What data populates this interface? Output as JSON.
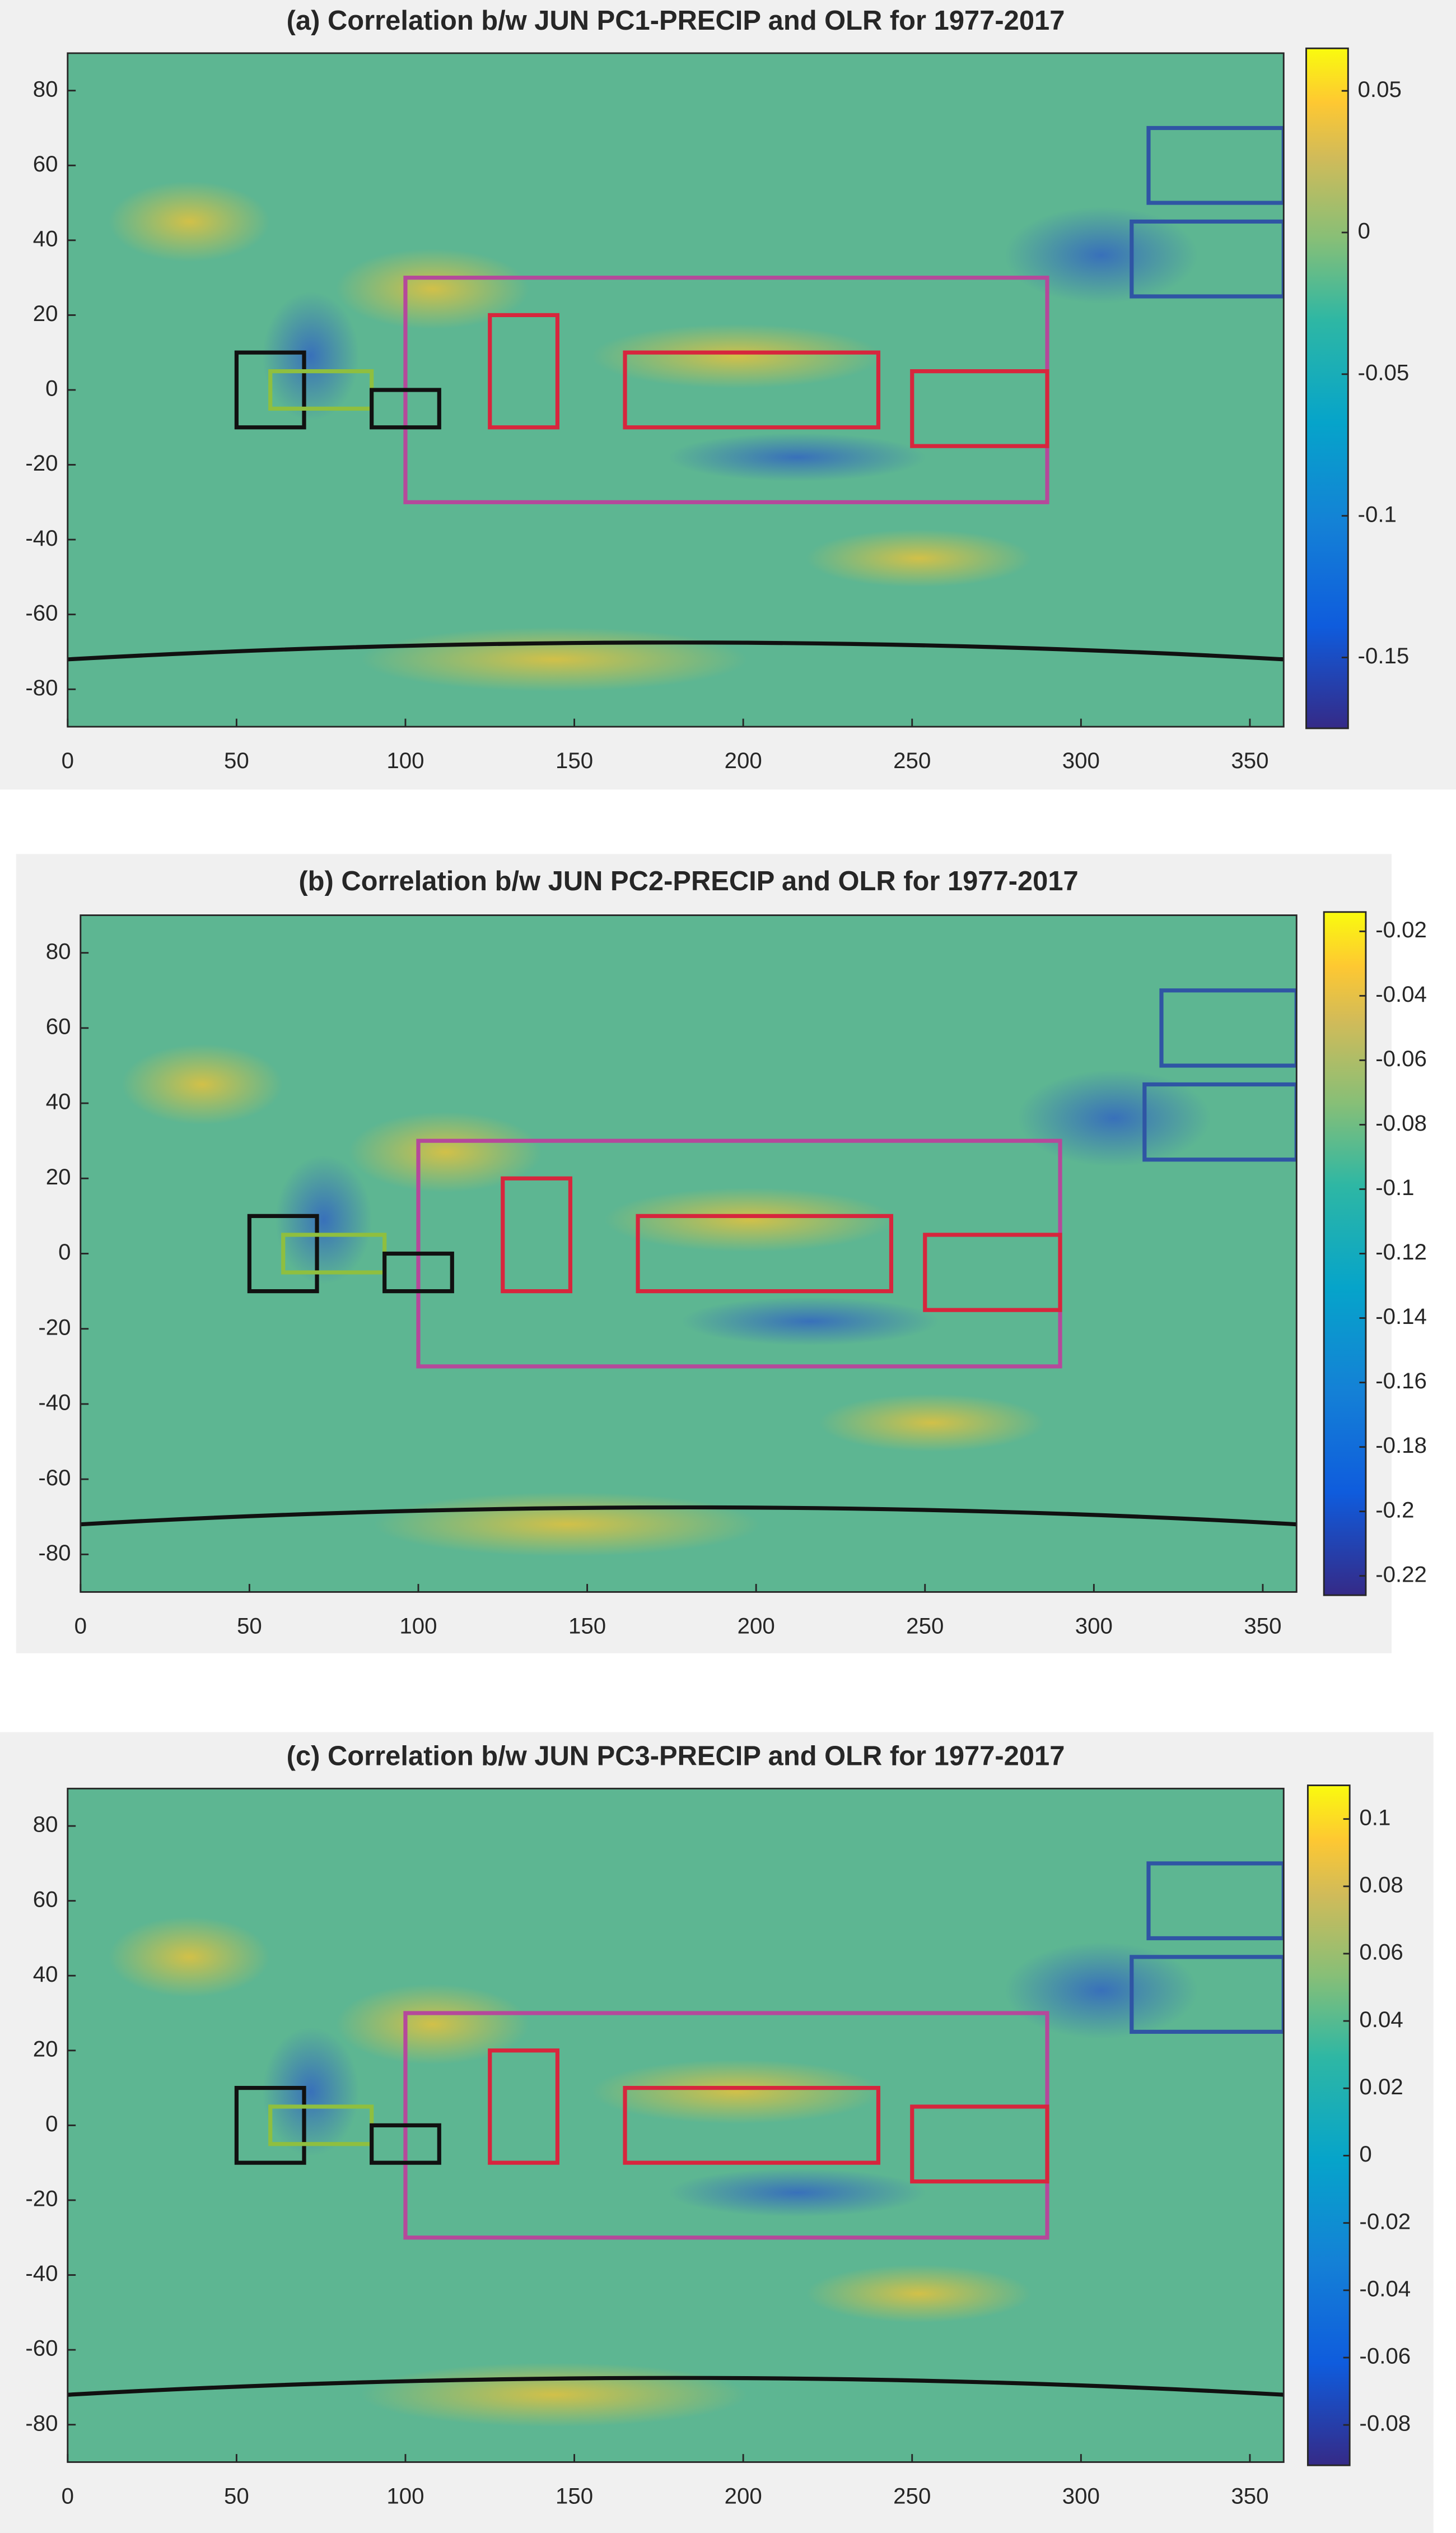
{
  "chart_data": [
    {
      "type": "map",
      "title": "(a) Correlation b/w JUN PC1-PRECIP and OLR for 1977-2017",
      "xlim": [
        0,
        360
      ],
      "xticks": [
        0,
        50,
        100,
        150,
        200,
        250,
        300,
        350
      ],
      "ylim": [
        -90,
        90
      ],
      "yticks": [
        -80,
        -60,
        -40,
        -20,
        0,
        20,
        40,
        60,
        80
      ],
      "clim": [
        -0.175,
        0.065
      ],
      "cticks": [
        -0.15,
        -0.1,
        -0.05,
        0,
        0.05
      ],
      "boxes": [
        {
          "lon": [
            100,
            290
          ],
          "lat": [
            -30,
            30
          ],
          "color": "#b5499b"
        },
        {
          "lon": [
            125,
            145
          ],
          "lat": [
            -10,
            20
          ],
          "color": "#d7263d"
        },
        {
          "lon": [
            165,
            240
          ],
          "lat": [
            -10,
            10
          ],
          "color": "#d7263d"
        },
        {
          "lon": [
            250,
            290
          ],
          "lat": [
            -15,
            5
          ],
          "color": "#d7263d"
        },
        {
          "lon": [
            50,
            70
          ],
          "lat": [
            -10,
            10
          ],
          "color": "#111111"
        },
        {
          "lon": [
            60,
            90
          ],
          "lat": [
            -5,
            5
          ],
          "color": "#8fbf3f"
        },
        {
          "lon": [
            90,
            110
          ],
          "lat": [
            -10,
            0
          ],
          "color": "#111111"
        },
        {
          "lon": [
            320,
            360
          ],
          "lat": [
            50,
            70
          ],
          "color": "#2f55a4"
        },
        {
          "lon": [
            315,
            360
          ],
          "lat": [
            25,
            45
          ],
          "color": "#2f55a4"
        }
      ]
    },
    {
      "type": "map",
      "title": "(b) Correlation b/w JUN PC2-PRECIP and OLR for 1977-2017",
      "xlim": [
        0,
        360
      ],
      "xticks": [
        0,
        50,
        100,
        150,
        200,
        250,
        300,
        350
      ],
      "ylim": [
        -90,
        90
      ],
      "yticks": [
        -80,
        -60,
        -40,
        -20,
        0,
        20,
        40,
        60,
        80
      ],
      "clim": [
        -0.226,
        -0.014
      ],
      "cticks": [
        -0.22,
        -0.2,
        -0.18,
        -0.16,
        -0.14,
        -0.12,
        -0.1,
        -0.08,
        -0.06,
        -0.04,
        -0.02
      ],
      "boxes": [
        {
          "lon": [
            100,
            290
          ],
          "lat": [
            -30,
            30
          ],
          "color": "#b5499b"
        },
        {
          "lon": [
            125,
            145
          ],
          "lat": [
            -10,
            20
          ],
          "color": "#d7263d"
        },
        {
          "lon": [
            165,
            240
          ],
          "lat": [
            -10,
            10
          ],
          "color": "#d7263d"
        },
        {
          "lon": [
            250,
            290
          ],
          "lat": [
            -15,
            5
          ],
          "color": "#d7263d"
        },
        {
          "lon": [
            50,
            70
          ],
          "lat": [
            -10,
            10
          ],
          "color": "#111111"
        },
        {
          "lon": [
            60,
            90
          ],
          "lat": [
            -5,
            5
          ],
          "color": "#8fbf3f"
        },
        {
          "lon": [
            90,
            110
          ],
          "lat": [
            -10,
            0
          ],
          "color": "#111111"
        },
        {
          "lon": [
            320,
            360
          ],
          "lat": [
            50,
            70
          ],
          "color": "#2f55a4"
        },
        {
          "lon": [
            315,
            360
          ],
          "lat": [
            25,
            45
          ],
          "color": "#2f55a4"
        }
      ]
    },
    {
      "type": "map",
      "title": "(c) Correlation b/w JUN PC3-PRECIP and OLR for 1977-2017",
      "xlim": [
        0,
        360
      ],
      "xticks": [
        0,
        50,
        100,
        150,
        200,
        250,
        300,
        350
      ],
      "ylim": [
        -90,
        90
      ],
      "yticks": [
        -80,
        -60,
        -40,
        -20,
        0,
        20,
        40,
        60,
        80
      ],
      "clim": [
        -0.092,
        0.11
      ],
      "cticks": [
        -0.08,
        -0.06,
        -0.04,
        -0.02,
        0,
        0.02,
        0.04,
        0.06,
        0.08,
        0.1
      ],
      "boxes": [
        {
          "lon": [
            100,
            290
          ],
          "lat": [
            -30,
            30
          ],
          "color": "#b5499b"
        },
        {
          "lon": [
            125,
            145
          ],
          "lat": [
            -10,
            20
          ],
          "color": "#d7263d"
        },
        {
          "lon": [
            165,
            240
          ],
          "lat": [
            -10,
            10
          ],
          "color": "#d7263d"
        },
        {
          "lon": [
            250,
            290
          ],
          "lat": [
            -15,
            5
          ],
          "color": "#d7263d"
        },
        {
          "lon": [
            50,
            70
          ],
          "lat": [
            -10,
            10
          ],
          "color": "#111111"
        },
        {
          "lon": [
            60,
            90
          ],
          "lat": [
            -5,
            5
          ],
          "color": "#8fbf3f"
        },
        {
          "lon": [
            90,
            110
          ],
          "lat": [
            -10,
            0
          ],
          "color": "#111111"
        },
        {
          "lon": [
            320,
            360
          ],
          "lat": [
            50,
            70
          ],
          "color": "#2f55a4"
        },
        {
          "lon": [
            315,
            360
          ],
          "lat": [
            25,
            45
          ],
          "color": "#2f55a4"
        }
      ]
    }
  ]
}
